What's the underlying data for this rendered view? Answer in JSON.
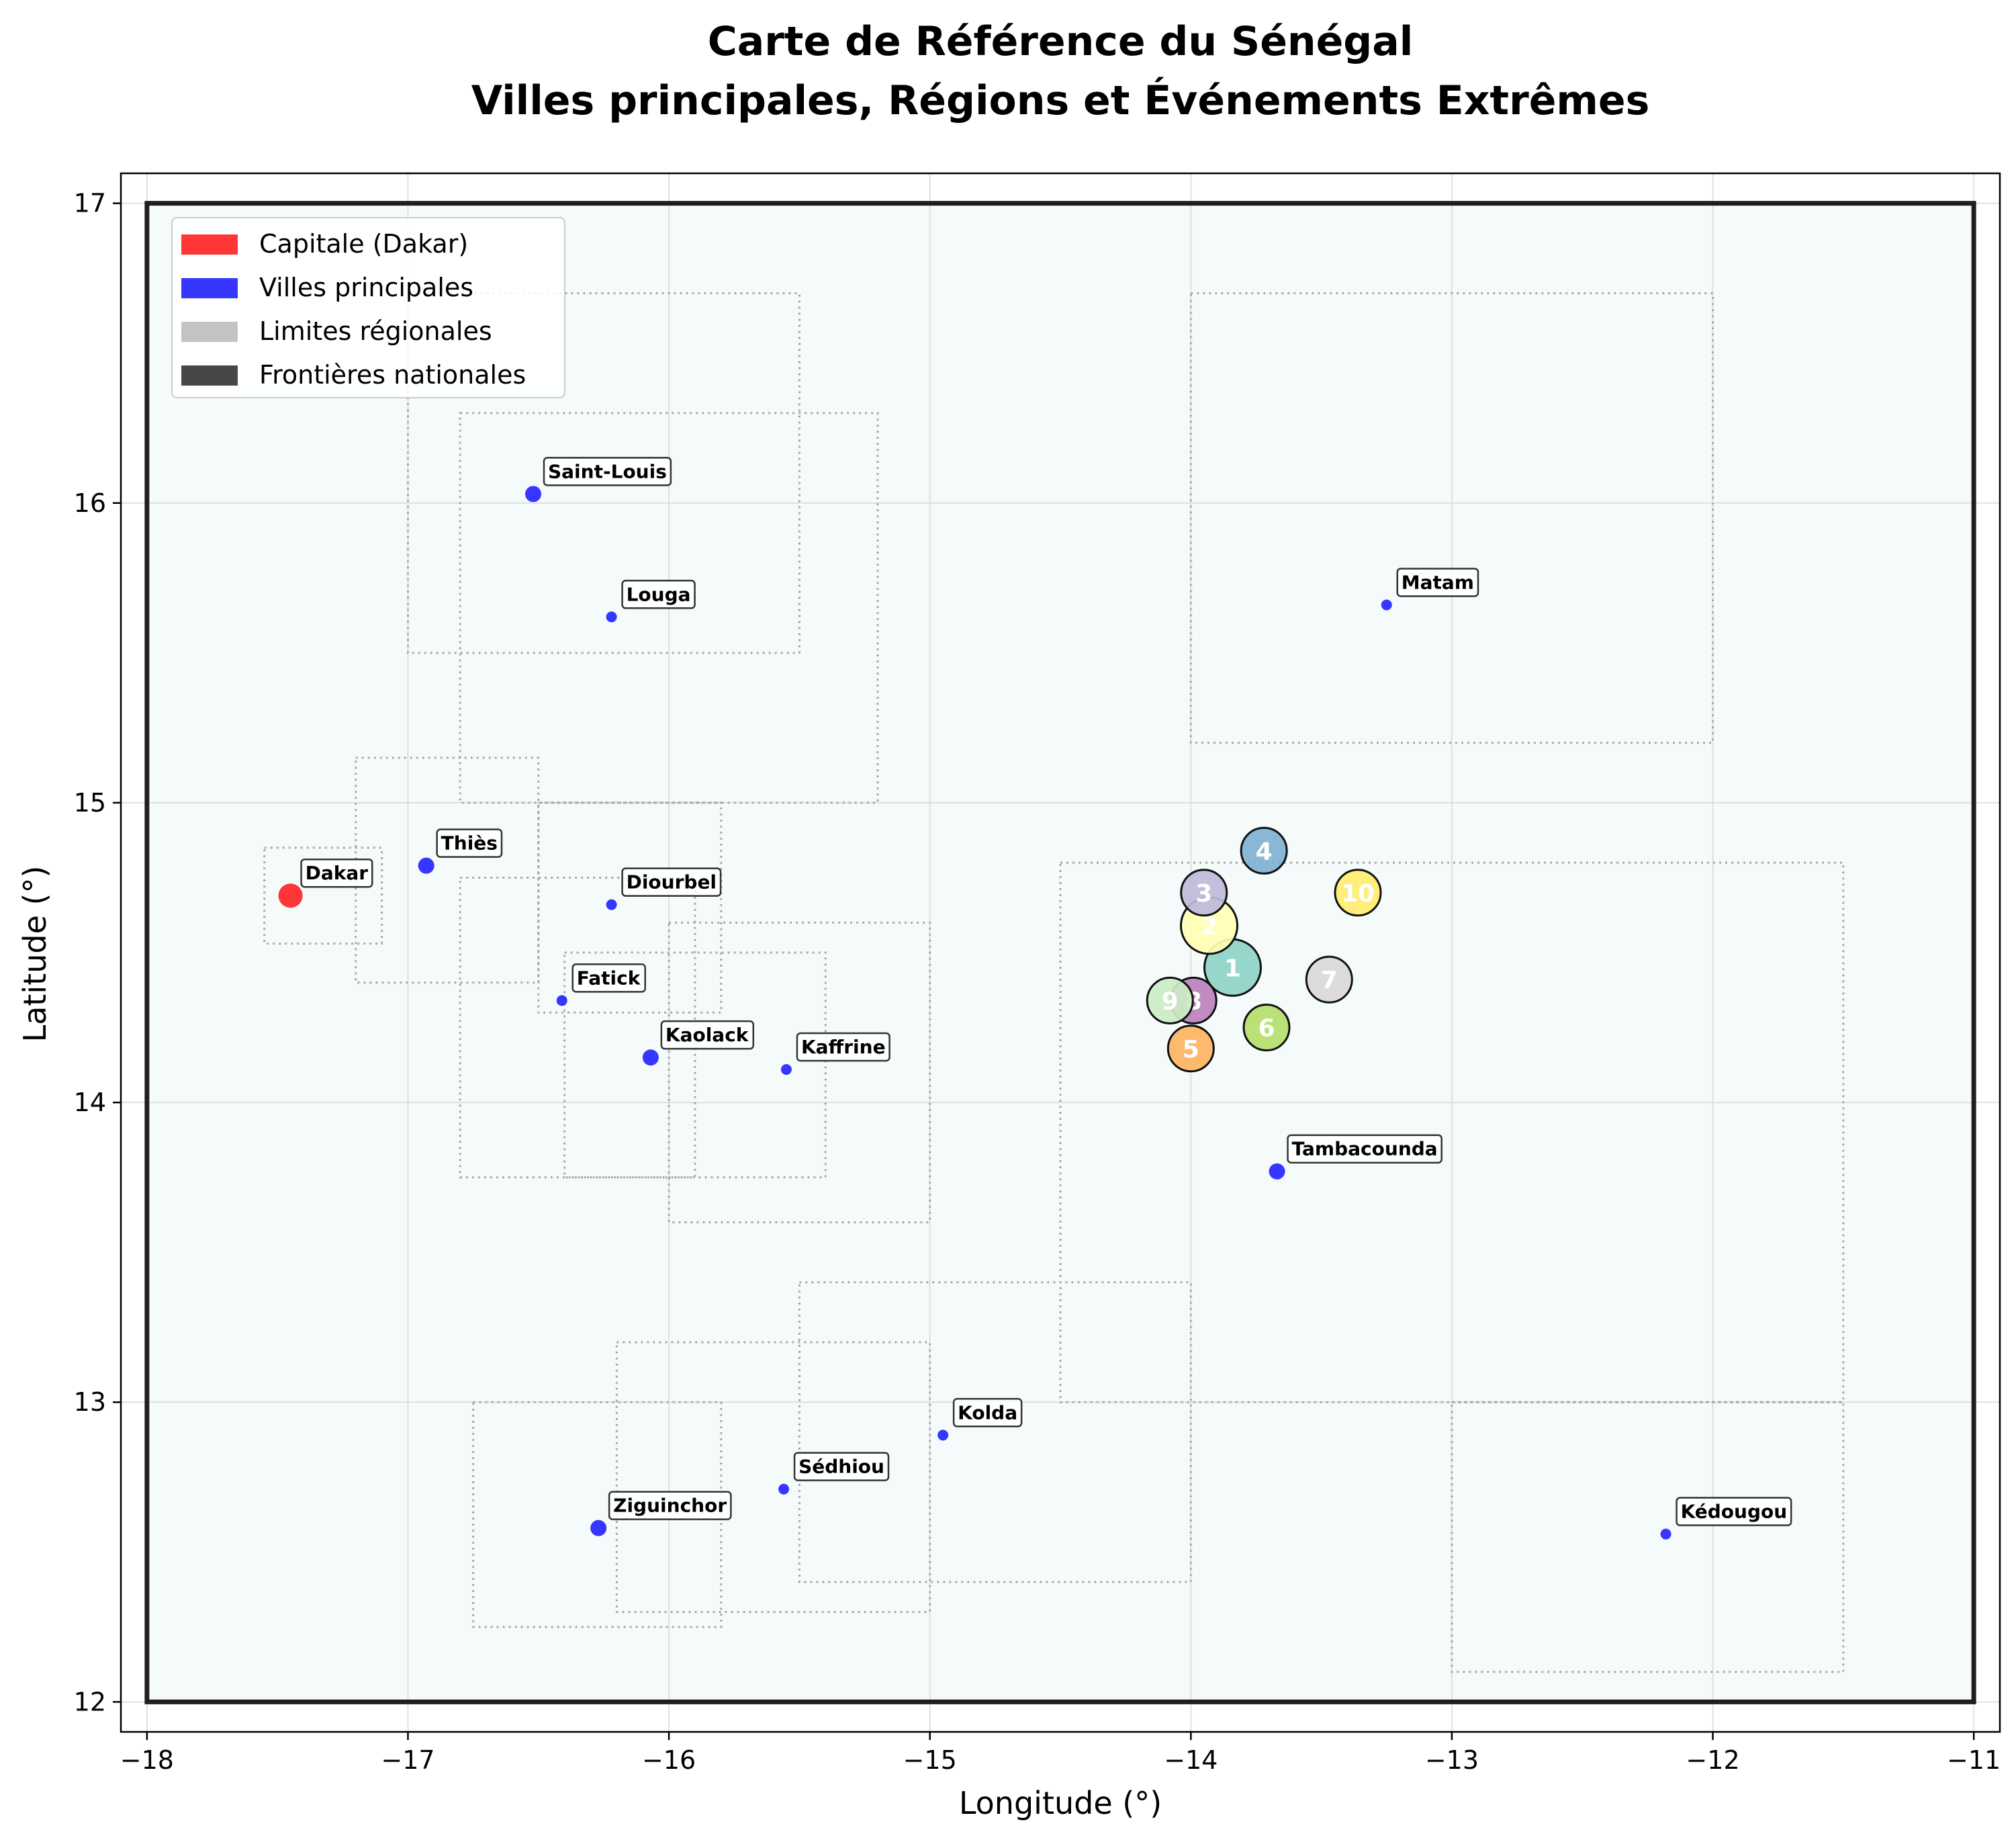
{
  "chart_data": {
    "type": "scatter",
    "title_line1": "Carte de Référence du Sénégal",
    "title_line2": "Villes principales, Régions et Événements Extrêmes",
    "xlabel": "Longitude (°)",
    "ylabel": "Latitude (°)",
    "xlim": [
      -18.1,
      -10.9
    ],
    "ylim": [
      11.9,
      17.1
    ],
    "xticks": [
      -18,
      -17,
      -16,
      -15,
      -14,
      -13,
      -12,
      -11
    ],
    "yticks": [
      12,
      13,
      14,
      15,
      16,
      17
    ],
    "xtick_labels": [
      "−18",
      "−17",
      "−16",
      "−15",
      "−14",
      "−13",
      "−12",
      "−11"
    ],
    "ytick_labels": [
      "12",
      "13",
      "14",
      "15",
      "16",
      "17"
    ],
    "grid": true,
    "legend_position": "top-left",
    "legend": [
      {
        "label": "Capitale (Dakar)",
        "color": "#ff2020"
      },
      {
        "label": "Villes principales",
        "color": "#2020ff"
      },
      {
        "label": "Limites régionales",
        "color": "#bdbdbd"
      },
      {
        "label": "Frontières nationales",
        "color": "#333333"
      }
    ],
    "national_border": {
      "lon": [
        -18,
        -11
      ],
      "lat": [
        12,
        17
      ]
    },
    "regions": [
      {
        "lon": [
          -17.55,
          -17.1
        ],
        "lat": [
          14.53,
          14.85
        ]
      },
      {
        "lon": [
          -17.2,
          -16.5
        ],
        "lat": [
          14.4,
          15.15
        ]
      },
      {
        "lon": [
          -17.0,
          -15.5
        ],
        "lat": [
          15.5,
          16.7
        ]
      },
      {
        "lon": [
          -16.8,
          -15.2
        ],
        "lat": [
          15.0,
          16.3
        ]
      },
      {
        "lon": [
          -16.5,
          -15.8
        ],
        "lat": [
          14.3,
          15.0
        ]
      },
      {
        "lon": [
          -16.8,
          -15.9
        ],
        "lat": [
          13.75,
          14.75
        ]
      },
      {
        "lon": [
          -16.4,
          -15.4
        ],
        "lat": [
          13.75,
          14.5
        ]
      },
      {
        "lon": [
          -16.0,
          -15.0
        ],
        "lat": [
          13.6,
          14.6
        ]
      },
      {
        "lon": [
          -14.5,
          -11.5
        ],
        "lat": [
          13.0,
          14.8
        ]
      },
      {
        "lon": [
          -14.0,
          -12.0
        ],
        "lat": [
          15.2,
          16.7
        ]
      },
      {
        "lon": [
          -13.0,
          -11.5
        ],
        "lat": [
          12.1,
          13.0
        ]
      },
      {
        "lon": [
          -15.5,
          -14.0
        ],
        "lat": [
          12.4,
          13.4
        ]
      },
      {
        "lon": [
          -16.2,
          -15.0
        ],
        "lat": [
          12.3,
          13.2
        ]
      },
      {
        "lon": [
          -16.75,
          -15.8
        ],
        "lat": [
          12.25,
          13.0
        ]
      }
    ],
    "cities": [
      {
        "name": "Dakar",
        "lon": -17.45,
        "lat": 14.69,
        "capital": true,
        "size": "large"
      },
      {
        "name": "Thiès",
        "lon": -16.93,
        "lat": 14.79,
        "capital": false,
        "size": "medium"
      },
      {
        "name": "Saint-Louis",
        "lon": -16.52,
        "lat": 16.03,
        "capital": false,
        "size": "medium"
      },
      {
        "name": "Louga",
        "lon": -16.22,
        "lat": 15.62,
        "capital": false,
        "size": "small"
      },
      {
        "name": "Diourbel",
        "lon": -16.22,
        "lat": 14.66,
        "capital": false,
        "size": "small"
      },
      {
        "name": "Fatick",
        "lon": -16.41,
        "lat": 14.34,
        "capital": false,
        "size": "small"
      },
      {
        "name": "Kaolack",
        "lon": -16.07,
        "lat": 14.15,
        "capital": false,
        "size": "medium"
      },
      {
        "name": "Kaffrine",
        "lon": -15.55,
        "lat": 14.11,
        "capital": false,
        "size": "small"
      },
      {
        "name": "Matam",
        "lon": -13.25,
        "lat": 15.66,
        "capital": false,
        "size": "small"
      },
      {
        "name": "Tambacounda",
        "lon": -13.67,
        "lat": 13.77,
        "capital": false,
        "size": "medium"
      },
      {
        "name": "Kolda",
        "lon": -14.95,
        "lat": 12.89,
        "capital": false,
        "size": "small"
      },
      {
        "name": "Sédhiou",
        "lon": -15.56,
        "lat": 12.71,
        "capital": false,
        "size": "small"
      },
      {
        "name": "Ziguinchor",
        "lon": -16.27,
        "lat": 12.58,
        "capital": false,
        "size": "medium"
      },
      {
        "name": "Kédougou",
        "lon": -12.18,
        "lat": 12.56,
        "capital": false,
        "size": "small"
      }
    ],
    "events": [
      {
        "label": "1",
        "lon": -13.84,
        "lat": 14.45,
        "color": "#8dd3c7",
        "size": "large"
      },
      {
        "label": "2",
        "lon": -13.93,
        "lat": 14.59,
        "color": "#ffffb3",
        "size": "large"
      },
      {
        "label": "3",
        "lon": -13.95,
        "lat": 14.7,
        "color": "#bebada",
        "size": "medium"
      },
      {
        "label": "4",
        "lon": -13.72,
        "lat": 14.84,
        "color": "#80b1d3",
        "size": "medium"
      },
      {
        "label": "5",
        "lon": -14.0,
        "lat": 14.18,
        "color": "#fdb462",
        "size": "medium"
      },
      {
        "label": "6",
        "lon": -13.71,
        "lat": 14.25,
        "color": "#b3de69",
        "size": "medium"
      },
      {
        "label": "7",
        "lon": -13.47,
        "lat": 14.41,
        "color": "#d9d9d9",
        "size": "medium"
      },
      {
        "label": "8",
        "lon": -13.99,
        "lat": 14.34,
        "color": "#bc80bd",
        "size": "medium"
      },
      {
        "label": "9",
        "lon": -14.08,
        "lat": 14.34,
        "color": "#ccebc5",
        "size": "medium"
      },
      {
        "label": "10",
        "lon": -13.36,
        "lat": 14.7,
        "color": "#ffed6f",
        "size": "medium"
      }
    ]
  }
}
